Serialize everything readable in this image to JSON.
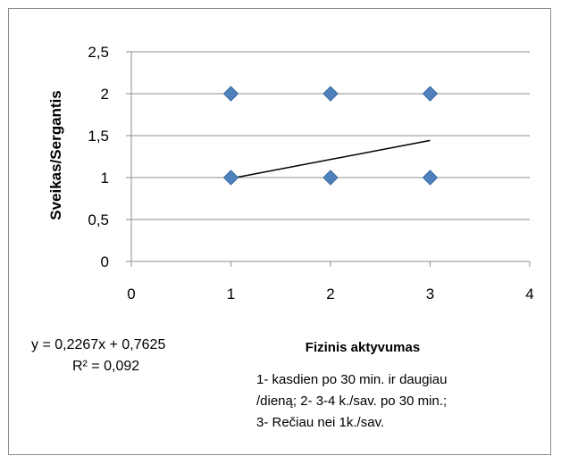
{
  "chart_data": {
    "type": "scatter",
    "ylabel": "Sveikas/Sergantis",
    "xlabel": "Fizinis aktyvumas",
    "xlim": [
      0,
      4
    ],
    "ylim": [
      0,
      2.5
    ],
    "x_ticks": [
      "0",
      "1",
      "2",
      "3",
      "4"
    ],
    "y_ticks": [
      "0",
      "0,5",
      "1",
      "1,5",
      "2",
      "2,5"
    ],
    "grid": "horizontal",
    "points": [
      {
        "x": 1,
        "y": 2
      },
      {
        "x": 2,
        "y": 2
      },
      {
        "x": 3,
        "y": 2
      },
      {
        "x": 1,
        "y": 1
      },
      {
        "x": 2,
        "y": 1
      },
      {
        "x": 3,
        "y": 1
      }
    ],
    "marker_color": "#4F81BD",
    "trendline": {
      "slope": 0.2267,
      "intercept": 0.7625,
      "x_range": [
        1,
        3
      ],
      "color": "#000000"
    },
    "equation": "y = 0,2267x + 0,7625",
    "r_squared": "R² = 0,092",
    "annotation_lines": [
      "1- kasdien po 30 min. ir daugiau",
      "/dieną; 2- 3-4 k./sav. po 30 min.;",
      "3- Rečiau nei 1k./sav."
    ]
  }
}
